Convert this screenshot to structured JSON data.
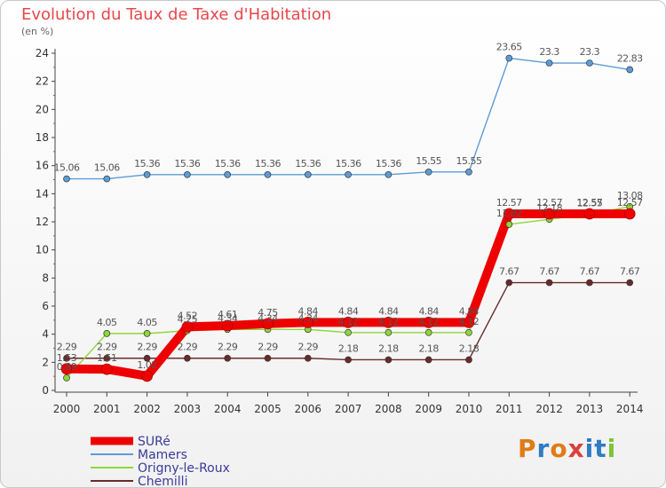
{
  "header": {
    "title": "Evolution du Taux de Taxe d'Habitation",
    "unit": "(en %)"
  },
  "logo": {
    "text": "Proxiti"
  },
  "chart_data": {
    "type": "line",
    "title": "Evolution du Taux de Taxe d'Habitation",
    "ylabel": "(en %)",
    "categories": [
      "2000",
      "2001",
      "2002",
      "2003",
      "2004",
      "2005",
      "2006",
      "2007",
      "2008",
      "2009",
      "2010",
      "2011",
      "2012",
      "2013",
      "2014"
    ],
    "ylim": [
      0,
      24
    ],
    "yticks": [
      0,
      2,
      4,
      6,
      8,
      10,
      12,
      14,
      16,
      18,
      20,
      22,
      24
    ],
    "grid": false,
    "legend_position": "bottom-left",
    "series": [
      {
        "name": "Mamers",
        "color": "#5d9cd6",
        "values": [
          15.06,
          15.06,
          15.36,
          15.36,
          15.36,
          15.36,
          15.36,
          15.36,
          15.36,
          15.55,
          15.55,
          23.65,
          23.3,
          23.3,
          22.83
        ],
        "labels": [
          "15.06",
          "15.06",
          "15.36",
          "15.36",
          "15.36",
          "15.36",
          "15.36",
          "15.36",
          "15.36",
          "15.55",
          "15.55",
          "23.65",
          "23.3",
          "23.3",
          "22.83"
        ]
      },
      {
        "name": "Chemilli",
        "color": "#6b2a2a",
        "values": [
          2.29,
          2.29,
          2.29,
          2.29,
          2.29,
          2.29,
          2.29,
          2.18,
          2.18,
          2.18,
          2.18,
          7.67,
          7.67,
          7.67,
          7.67
        ],
        "labels": [
          "2.29",
          "2.29",
          "2.29",
          "2.29",
          "2.29",
          "2.29",
          "2.29",
          "2.18",
          "2.18",
          "2.18",
          "2.18",
          "7.67",
          "7.67",
          "7.67",
          "7.67"
        ]
      },
      {
        "name": "Origny-le-Roux",
        "color": "#8fd63a",
        "values": [
          0.89,
          4.05,
          4.05,
          4.25,
          4.34,
          4.34,
          4.34,
          4.12,
          4.12,
          4.12,
          4.12,
          11.82,
          12.18,
          12.55,
          13.08
        ],
        "labels": [
          "0.89",
          "4.05",
          "4.05",
          "4.25",
          "4.34",
          "4.34",
          "4.34",
          "4.12",
          "4.12",
          "4.12",
          "4.12",
          "11.82",
          "12.18",
          "12.55",
          "13.08"
        ]
      },
      {
        "name": "SURé",
        "color": "#ee0000",
        "values": [
          1.53,
          1.51,
          1.02,
          4.52,
          4.61,
          4.75,
          4.84,
          4.84,
          4.84,
          4.84,
          4.84,
          12.57,
          12.57,
          12.57,
          12.57
        ],
        "labels": [
          "1.53",
          "1.51",
          "1.02",
          "4.52",
          "4.61",
          "4.75",
          "4.84",
          "4.84",
          "4.84",
          "4.84",
          "4.84",
          "12.57",
          "12.57",
          "12.57",
          "12.57"
        ]
      }
    ],
    "legend": [
      {
        "name": "SURé",
        "color": "#ee0000"
      },
      {
        "name": "Mamers",
        "color": "#5d9cd6"
      },
      {
        "name": "Origny-le-Roux",
        "color": "#8fd63a"
      },
      {
        "name": "Chemilli",
        "color": "#6b2a2a"
      }
    ]
  }
}
